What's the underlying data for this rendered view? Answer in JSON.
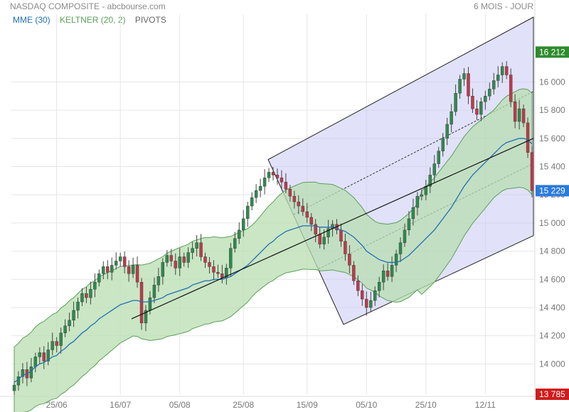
{
  "header": {
    "title": "NASDAQ COMPOSITE - abcbourse.com",
    "period": "6 MOIS - JOUR"
  },
  "legend": {
    "items": [
      {
        "label": "MME (30)",
        "color": "#1f6fb5"
      },
      {
        "label": "KELTNER (20, 2)",
        "color": "#5aa05a"
      },
      {
        "label": "PIVOTS",
        "color": "#666666"
      }
    ]
  },
  "chart_data": {
    "type": "candlestick",
    "title": "NASDAQ COMPOSITE",
    "x_ticks": [
      "25/06",
      "16/07",
      "05/08",
      "25/08",
      "15/09",
      "05/10",
      "25/10",
      "12/11"
    ],
    "y_ticks": [
      "14 000",
      "14 200",
      "14 400",
      "14 600",
      "14 800",
      "15 000",
      "15 200",
      "15 400",
      "15 600",
      "15 800",
      "16 000"
    ],
    "ylim": [
      13785,
      16380
    ],
    "max_label": "16 212",
    "last_label": "15 229",
    "min_label": "13 785",
    "colors": {
      "up": "#2f8a4f",
      "down": "#c0394b",
      "channel": "#c8c8f5",
      "keltner": "#b8ddb0",
      "mme": "#1f6fb5"
    },
    "closes": [
      13850,
      13910,
      13960,
      13900,
      13980,
      14050,
      14080,
      14020,
      14100,
      14160,
      14130,
      14220,
      14270,
      14310,
      14380,
      14440,
      14500,
      14470,
      14530,
      14580,
      14640,
      14690,
      14650,
      14700,
      14730,
      14760,
      14690,
      14640,
      14700,
      14580,
      14290,
      14380,
      14470,
      14560,
      14620,
      14720,
      14770,
      14730,
      14680,
      14760,
      14720,
      14790,
      14820,
      14860,
      14760,
      14720,
      14690,
      14650,
      14640,
      14610,
      14680,
      14820,
      14890,
      14950,
      15030,
      15120,
      15180,
      15230,
      15260,
      15320,
      15360,
      15340,
      15320,
      15290,
      15240,
      15190,
      15150,
      15120,
      15080,
      15040,
      14990,
      14920,
      14850,
      14900,
      14960,
      14990,
      14950,
      14870,
      14780,
      14700,
      14590,
      14520,
      14460,
      14400,
      14450,
      14520,
      14580,
      14660,
      14620,
      14700,
      14780,
      14860,
      14950,
      15030,
      15110,
      15190,
      15200,
      15260,
      15340,
      15420,
      15510,
      15600,
      15700,
      15790,
      15920,
      16020,
      16060,
      15900,
      15810,
      15770,
      15860,
      15900,
      15950,
      16010,
      16050,
      16110,
      16050,
      15860,
      15720,
      15810,
      15710,
      15500,
      15229
    ],
    "mme": [
      13870,
      13890,
      13920,
      13930,
      13950,
      13980,
      14000,
      14010,
      14030,
      14050,
      14060,
      14090,
      14110,
      14140,
      14160,
      14190,
      14220,
      14240,
      14270,
      14290,
      14320,
      14340,
      14360,
      14380,
      14400,
      14420,
      14430,
      14440,
      14450,
      14450,
      14440,
      14440,
      14440,
      14450,
      14460,
      14470,
      14490,
      14500,
      14510,
      14520,
      14530,
      14540,
      14560,
      14570,
      14580,
      14590,
      14590,
      14600,
      14600,
      14600,
      14610,
      14620,
      14640,
      14660,
      14680,
      14700,
      14730,
      14760,
      14790,
      14820,
      14850,
      14870,
      14900,
      14920,
      14940,
      14950,
      14960,
      14970,
      14980,
      14980,
      14980,
      14980,
      14970,
      14970,
      14970,
      14970,
      14960,
      14950,
      14940,
      14920,
      14900,
      14870,
      14840,
      14800,
      14780,
      14760,
      14740,
      14730,
      14720,
      14720,
      14720,
      14730,
      14750,
      14770,
      14800,
      14830,
      14860,
      14890,
      14920,
      14950,
      14990,
      15030,
      15070,
      15110,
      15160,
      15210,
      15260,
      15300,
      15340,
      15370,
      15400,
      15430,
      15460,
      15490,
      15520,
      15550,
      15570,
      15580,
      15590,
      15600,
      15600,
      15590,
      15560
    ],
    "channel": {
      "upper": [
        [
          377,
          15450
        ],
        [
          750,
          16460
        ]
      ],
      "lower": [
        [
          483,
          14280
        ],
        [
          750,
          14910
        ]
      ]
    },
    "pivot_line": {
      "start": [
        185,
        14320
      ],
      "end": [
        750,
        15600
      ]
    }
  }
}
